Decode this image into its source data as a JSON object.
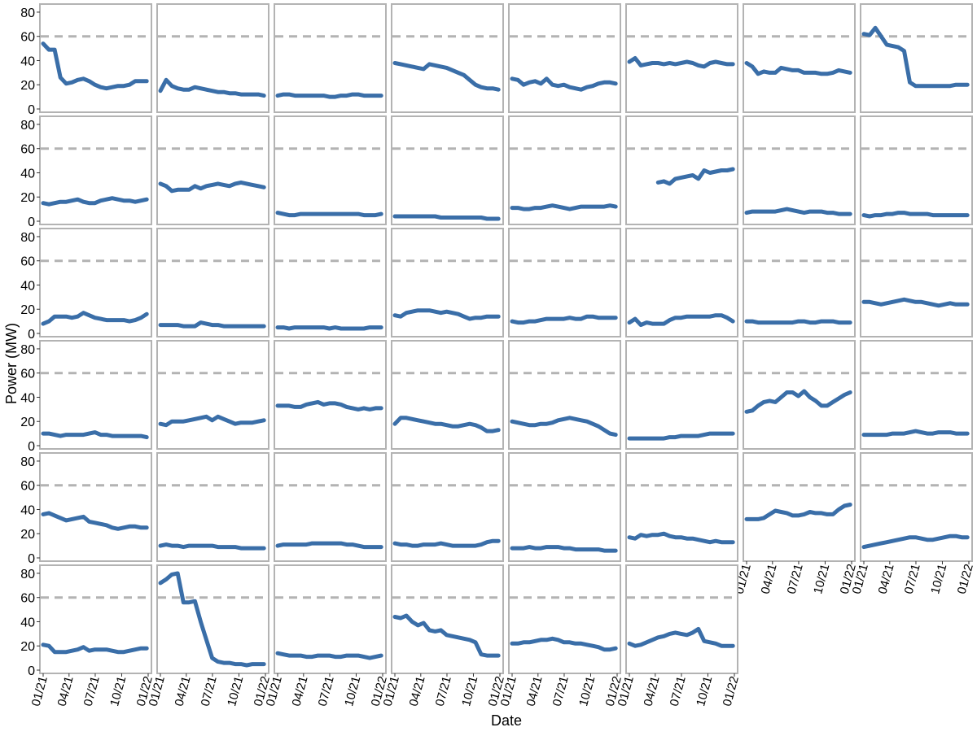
{
  "chart_data": {
    "type": "line",
    "layout": "small-multiples",
    "xlabel": "Date",
    "ylabel": "Power (MW)",
    "x_ticks": [
      "01/21",
      "04/21",
      "07/21",
      "10/21",
      "01/22"
    ],
    "y_ticks": [
      0,
      20,
      40,
      60,
      80
    ],
    "ylim": [
      0,
      84
    ],
    "x_range": [
      "2021-01",
      "2022-01"
    ],
    "reference_line": {
      "y": 60,
      "style": "dashed"
    },
    "grid": false,
    "colors": {
      "series": "#3a6ea8",
      "reference": "#b3b3b3",
      "frame": "#b3b3b3"
    },
    "x": [
      "2021-01-01",
      "2021-01-21",
      "2021-02-10",
      "2021-03-02",
      "2021-03-22",
      "2021-04-11",
      "2021-05-01",
      "2021-05-21",
      "2021-06-10",
      "2021-06-30",
      "2021-07-20",
      "2021-08-09",
      "2021-08-29",
      "2021-09-18",
      "2021-10-08",
      "2021-10-28",
      "2021-11-17",
      "2021-12-07",
      "2021-12-27"
    ],
    "series": [
      {
        "values": [
          54,
          49,
          49,
          26,
          21,
          22,
          24,
          25,
          23,
          20,
          18,
          17,
          18,
          19,
          19,
          20,
          23,
          23,
          23
        ]
      },
      {
        "values": [
          15,
          24,
          19,
          17,
          16,
          16,
          18,
          17,
          16,
          15,
          14,
          14,
          13,
          13,
          12,
          12,
          12,
          12,
          11
        ]
      },
      {
        "values": [
          11,
          12,
          12,
          11,
          11,
          11,
          11,
          11,
          11,
          10,
          10,
          11,
          11,
          12,
          12,
          11,
          11,
          11,
          11
        ]
      },
      {
        "values": [
          38,
          37,
          36,
          35,
          34,
          33,
          37,
          36,
          35,
          34,
          32,
          30,
          28,
          24,
          20,
          18,
          17,
          17,
          16
        ]
      },
      {
        "values": [
          25,
          24,
          20,
          22,
          23,
          21,
          25,
          20,
          19,
          20,
          18,
          17,
          16,
          18,
          19,
          21,
          22,
          22,
          21
        ]
      },
      {
        "values": [
          39,
          42,
          36,
          37,
          38,
          38,
          37,
          38,
          37,
          38,
          39,
          38,
          36,
          35,
          38,
          39,
          38,
          37,
          37
        ]
      },
      {
        "values": [
          38,
          35,
          29,
          31,
          30,
          30,
          34,
          33,
          32,
          32,
          30,
          30,
          30,
          29,
          29,
          30,
          32,
          31,
          30
        ]
      },
      {
        "values": [
          62,
          61,
          67,
          60,
          53,
          52,
          51,
          48,
          22,
          19,
          19,
          19,
          19,
          19,
          19,
          19,
          20,
          20,
          20
        ]
      },
      {
        "values": [
          15,
          14,
          15,
          16,
          16,
          17,
          18,
          16,
          15,
          15,
          17,
          18,
          19,
          18,
          17,
          17,
          16,
          17,
          18
        ]
      },
      {
        "values": [
          31,
          29,
          25,
          26,
          26,
          26,
          29,
          27,
          29,
          30,
          31,
          30,
          29,
          31,
          32,
          31,
          30,
          29,
          28
        ]
      },
      {
        "values": [
          7,
          6,
          5,
          5,
          6,
          6,
          6,
          6,
          6,
          6,
          6,
          6,
          6,
          6,
          6,
          5,
          5,
          5,
          6
        ]
      },
      {
        "values": [
          4,
          4,
          4,
          4,
          4,
          4,
          4,
          4,
          3,
          3,
          3,
          3,
          3,
          3,
          3,
          3,
          2,
          2,
          2
        ]
      },
      {
        "values": [
          11,
          11,
          10,
          10,
          11,
          11,
          12,
          13,
          12,
          11,
          10,
          11,
          12,
          12,
          12,
          12,
          12,
          13,
          12
        ]
      },
      {
        "values": [
          null,
          null,
          null,
          null,
          null,
          32,
          33,
          31,
          35,
          36,
          37,
          38,
          35,
          42,
          40,
          41,
          42,
          42,
          43
        ]
      },
      {
        "values": [
          7,
          8,
          8,
          8,
          8,
          8,
          9,
          10,
          9,
          8,
          7,
          8,
          8,
          8,
          7,
          7,
          6,
          6,
          6
        ]
      },
      {
        "values": [
          5,
          4,
          5,
          5,
          6,
          6,
          7,
          7,
          6,
          6,
          6,
          6,
          5,
          5,
          5,
          5,
          5,
          5,
          5
        ]
      },
      {
        "values": [
          8,
          10,
          14,
          14,
          14,
          13,
          14,
          17,
          15,
          13,
          12,
          11,
          11,
          11,
          11,
          10,
          11,
          13,
          16
        ]
      },
      {
        "values": [
          7,
          7,
          7,
          7,
          6,
          6,
          6,
          9,
          8,
          7,
          7,
          6,
          6,
          6,
          6,
          6,
          6,
          6,
          6
        ]
      },
      {
        "values": [
          5,
          5,
          4,
          5,
          5,
          5,
          5,
          5,
          5,
          4,
          5,
          4,
          4,
          4,
          4,
          4,
          5,
          5,
          5
        ]
      },
      {
        "values": [
          15,
          14,
          17,
          18,
          19,
          19,
          19,
          18,
          17,
          18,
          17,
          16,
          14,
          12,
          13,
          13,
          14,
          14,
          14
        ]
      },
      {
        "values": [
          10,
          9,
          9,
          10,
          10,
          11,
          12,
          12,
          12,
          12,
          13,
          12,
          12,
          14,
          14,
          13,
          13,
          13,
          13
        ]
      },
      {
        "values": [
          9,
          12,
          7,
          9,
          8,
          8,
          8,
          11,
          13,
          13,
          14,
          14,
          14,
          14,
          14,
          15,
          15,
          13,
          10
        ]
      },
      {
        "values": [
          10,
          10,
          9,
          9,
          9,
          9,
          9,
          9,
          9,
          10,
          10,
          9,
          9,
          10,
          10,
          10,
          9,
          9,
          9
        ]
      },
      {
        "values": [
          26,
          26,
          25,
          24,
          25,
          26,
          27,
          28,
          27,
          26,
          26,
          25,
          24,
          23,
          24,
          25,
          24,
          24,
          24
        ]
      },
      {
        "values": [
          10,
          10,
          9,
          8,
          9,
          9,
          9,
          9,
          10,
          11,
          9,
          9,
          8,
          8,
          8,
          8,
          8,
          8,
          7
        ]
      },
      {
        "values": [
          18,
          17,
          20,
          20,
          20,
          21,
          22,
          23,
          24,
          21,
          24,
          22,
          20,
          18,
          19,
          19,
          19,
          20,
          21
        ]
      },
      {
        "values": [
          33,
          33,
          33,
          32,
          32,
          34,
          35,
          36,
          34,
          35,
          35,
          34,
          32,
          31,
          30,
          31,
          30,
          31,
          31
        ]
      },
      {
        "values": [
          18,
          23,
          23,
          22,
          21,
          20,
          19,
          18,
          18,
          17,
          16,
          16,
          17,
          18,
          17,
          15,
          12,
          12,
          13
        ]
      },
      {
        "values": [
          20,
          19,
          18,
          17,
          17,
          18,
          18,
          19,
          21,
          22,
          23,
          22,
          21,
          20,
          18,
          16,
          13,
          10,
          9
        ]
      },
      {
        "values": [
          6,
          6,
          6,
          6,
          6,
          6,
          6,
          7,
          7,
          8,
          8,
          8,
          8,
          9,
          10,
          10,
          10,
          10,
          10
        ]
      },
      {
        "values": [
          28,
          29,
          33,
          36,
          37,
          36,
          40,
          44,
          44,
          41,
          45,
          40,
          37,
          33,
          33,
          36,
          39,
          42,
          44
        ]
      },
      {
        "values": [
          9,
          9,
          9,
          9,
          9,
          10,
          10,
          10,
          11,
          12,
          11,
          10,
          10,
          11,
          11,
          11,
          10,
          10,
          10
        ]
      },
      {
        "values": [
          36,
          37,
          35,
          33,
          31,
          32,
          33,
          34,
          30,
          29,
          28,
          27,
          25,
          24,
          25,
          26,
          26,
          25,
          25
        ]
      },
      {
        "values": [
          10,
          11,
          10,
          10,
          9,
          10,
          10,
          10,
          10,
          10,
          9,
          9,
          9,
          9,
          8,
          8,
          8,
          8,
          8
        ]
      },
      {
        "values": [
          10,
          11,
          11,
          11,
          11,
          11,
          12,
          12,
          12,
          12,
          12,
          12,
          11,
          11,
          10,
          9,
          9,
          9,
          9
        ]
      },
      {
        "values": [
          12,
          11,
          11,
          10,
          10,
          11,
          11,
          11,
          12,
          11,
          10,
          10,
          10,
          10,
          10,
          11,
          13,
          14,
          14
        ]
      },
      {
        "values": [
          8,
          8,
          8,
          9,
          8,
          8,
          9,
          9,
          9,
          8,
          8,
          7,
          7,
          7,
          7,
          7,
          6,
          6,
          6
        ]
      },
      {
        "values": [
          17,
          16,
          19,
          18,
          19,
          19,
          20,
          18,
          17,
          17,
          16,
          16,
          15,
          14,
          13,
          14,
          13,
          13,
          13
        ]
      },
      {
        "values": [
          32,
          32,
          32,
          33,
          36,
          39,
          38,
          37,
          35,
          35,
          36,
          38,
          37,
          37,
          36,
          36,
          40,
          43,
          44
        ]
      },
      {
        "values": [
          9,
          10,
          11,
          12,
          13,
          14,
          15,
          16,
          17,
          17,
          16,
          15,
          15,
          16,
          17,
          18,
          18,
          17,
          17
        ]
      },
      {
        "values": [
          21,
          20,
          15,
          15,
          15,
          16,
          17,
          19,
          16,
          17,
          17,
          17,
          16,
          15,
          15,
          16,
          17,
          18,
          18
        ]
      },
      {
        "values": [
          72,
          75,
          79,
          80,
          56,
          56,
          57,
          40,
          25,
          10,
          7,
          6,
          6,
          5,
          5,
          4,
          5,
          5,
          5
        ]
      },
      {
        "values": [
          14,
          13,
          12,
          12,
          12,
          11,
          11,
          12,
          12,
          12,
          11,
          11,
          12,
          12,
          12,
          11,
          10,
          11,
          12
        ]
      },
      {
        "values": [
          44,
          43,
          45,
          40,
          37,
          39,
          33,
          32,
          33,
          29,
          28,
          27,
          26,
          25,
          23,
          13,
          12,
          12,
          12
        ]
      },
      {
        "values": [
          22,
          22,
          23,
          23,
          24,
          25,
          25,
          26,
          25,
          23,
          23,
          22,
          22,
          21,
          20,
          19,
          17,
          17,
          18
        ]
      },
      {
        "values": [
          22,
          20,
          21,
          23,
          25,
          27,
          28,
          30,
          31,
          30,
          29,
          31,
          34,
          24,
          23,
          22,
          20,
          20,
          20
        ]
      }
    ]
  }
}
